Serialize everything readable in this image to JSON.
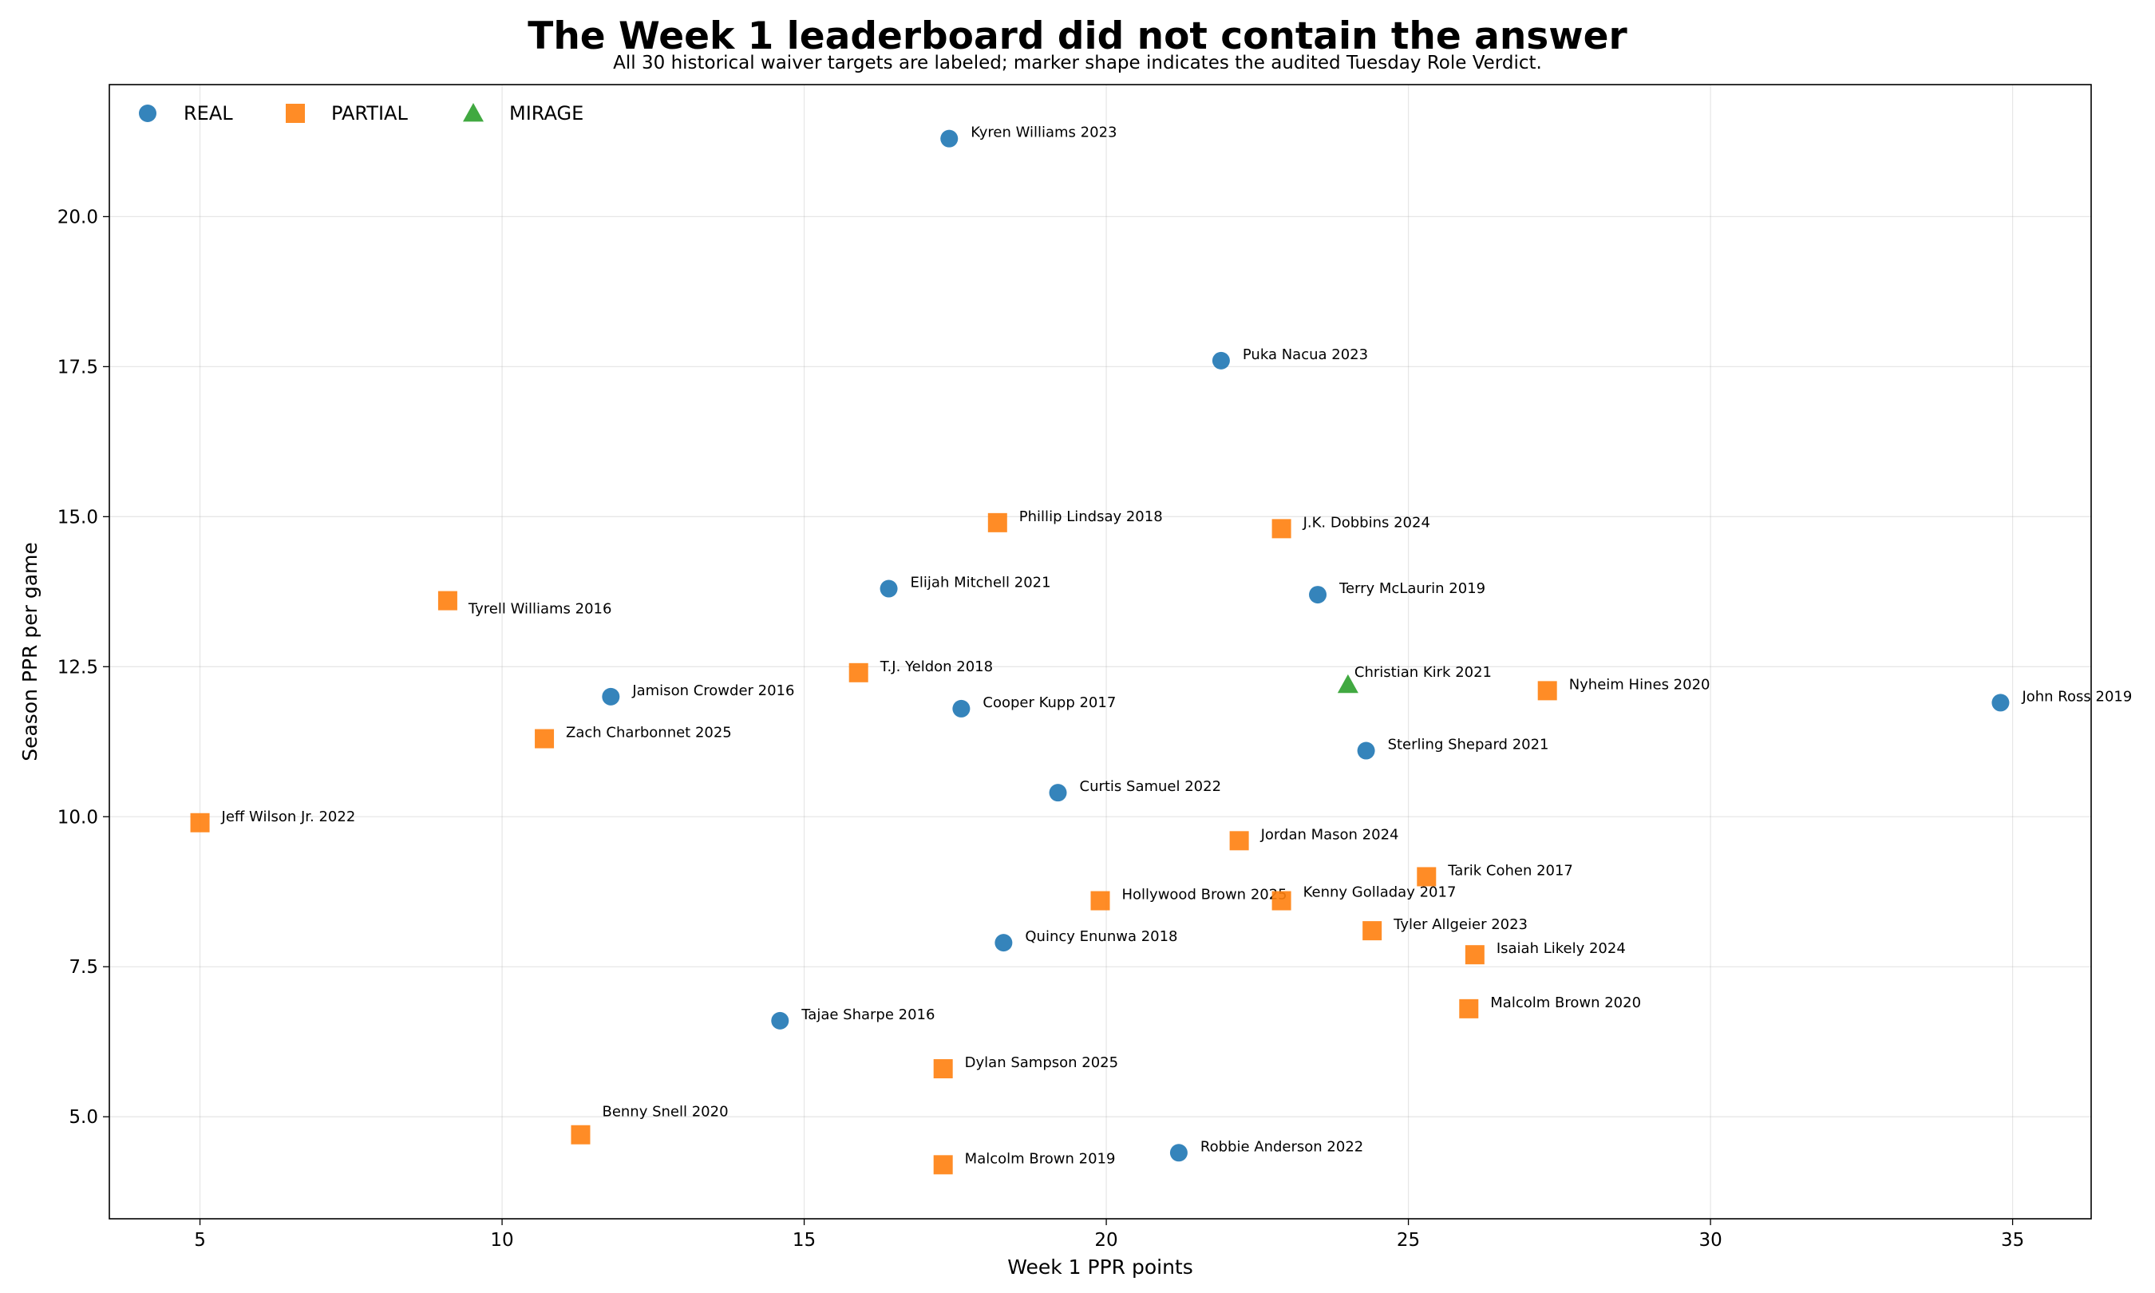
{
  "chart_data": {
    "type": "scatter",
    "title": "The Week 1 leaderboard did not contain the answer",
    "subtitle": "All 30 historical waiver targets are labeled; marker shape indicates the audited Tuesday Role Verdict.",
    "xlabel": "Week 1 PPR points",
    "ylabel": "Season PPR per game",
    "xlim": [
      3.5,
      36.3
    ],
    "ylim": [
      3.3,
      22.2
    ],
    "xticks": [
      5,
      10,
      15,
      20,
      25,
      30,
      35
    ],
    "yticks": [
      5.0,
      7.5,
      10.0,
      12.5,
      15.0,
      17.5,
      20.0
    ],
    "xtick_labels": [
      "5",
      "10",
      "15",
      "20",
      "25",
      "30",
      "35"
    ],
    "ytick_labels": [
      "5.0",
      "7.5",
      "10.0",
      "12.5",
      "15.0",
      "17.5",
      "20.0"
    ],
    "grid": true,
    "legend_position": "top-left",
    "categories": [
      {
        "name": "REAL",
        "marker": "circle",
        "color": "#1f77b4"
      },
      {
        "name": "PARTIAL",
        "marker": "square",
        "color": "#ff7f0e"
      },
      {
        "name": "MIRAGE",
        "marker": "triangle",
        "color": "#2ca02c"
      }
    ],
    "points": [
      {
        "label": "Kyren Williams 2023",
        "x": 17.4,
        "y": 21.3,
        "verdict": "REAL"
      },
      {
        "label": "Puka Nacua 2023",
        "x": 21.9,
        "y": 17.6,
        "verdict": "REAL"
      },
      {
        "label": "Phillip Lindsay 2018",
        "x": 18.2,
        "y": 14.9,
        "verdict": "PARTIAL"
      },
      {
        "label": "J.K. Dobbins 2024",
        "x": 22.9,
        "y": 14.8,
        "verdict": "PARTIAL"
      },
      {
        "label": "Elijah Mitchell 2021",
        "x": 16.4,
        "y": 13.8,
        "verdict": "REAL"
      },
      {
        "label": "Terry McLaurin 2019",
        "x": 23.5,
        "y": 13.7,
        "verdict": "REAL"
      },
      {
        "label": "Tyrell Williams 2016",
        "x": 9.1,
        "y": 13.6,
        "verdict": "PARTIAL"
      },
      {
        "label": "T.J. Yeldon 2018",
        "x": 15.9,
        "y": 12.4,
        "verdict": "PARTIAL"
      },
      {
        "label": "Christian Kirk 2021",
        "x": 24.0,
        "y": 12.2,
        "verdict": "MIRAGE"
      },
      {
        "label": "Nyheim Hines 2020",
        "x": 27.3,
        "y": 12.1,
        "verdict": "PARTIAL"
      },
      {
        "label": "Jamison Crowder 2016",
        "x": 11.8,
        "y": 12.0,
        "verdict": "REAL"
      },
      {
        "label": "John Ross 2019",
        "x": 34.8,
        "y": 11.9,
        "verdict": "REAL"
      },
      {
        "label": "Cooper Kupp 2017",
        "x": 17.6,
        "y": 11.8,
        "verdict": "REAL"
      },
      {
        "label": "Zach Charbonnet 2025",
        "x": 10.7,
        "y": 11.3,
        "verdict": "PARTIAL"
      },
      {
        "label": "Sterling Shepard 2021",
        "x": 24.3,
        "y": 11.1,
        "verdict": "REAL"
      },
      {
        "label": "Curtis Samuel 2022",
        "x": 19.2,
        "y": 10.4,
        "verdict": "REAL"
      },
      {
        "label": "Jeff Wilson Jr. 2022",
        "x": 5.0,
        "y": 9.9,
        "verdict": "PARTIAL"
      },
      {
        "label": "Jordan Mason 2024",
        "x": 22.2,
        "y": 9.6,
        "verdict": "PARTIAL"
      },
      {
        "label": "Tarik Cohen 2017",
        "x": 25.3,
        "y": 9.0,
        "verdict": "PARTIAL"
      },
      {
        "label": "Hollywood Brown 2025",
        "x": 19.9,
        "y": 8.6,
        "verdict": "PARTIAL"
      },
      {
        "label": "Kenny Golladay 2017",
        "x": 22.9,
        "y": 8.6,
        "verdict": "PARTIAL"
      },
      {
        "label": "Tyler Allgeier 2023",
        "x": 24.4,
        "y": 8.1,
        "verdict": "PARTIAL"
      },
      {
        "label": "Quincy Enunwa 2018",
        "x": 18.3,
        "y": 7.9,
        "verdict": "REAL"
      },
      {
        "label": "Isaiah Likely 2024",
        "x": 26.1,
        "y": 7.7,
        "verdict": "PARTIAL"
      },
      {
        "label": "Malcolm Brown 2020",
        "x": 26.0,
        "y": 6.8,
        "verdict": "PARTIAL"
      },
      {
        "label": "Tajae Sharpe 2016",
        "x": 14.6,
        "y": 6.6,
        "verdict": "REAL"
      },
      {
        "label": "Dylan Sampson 2025",
        "x": 17.3,
        "y": 5.8,
        "verdict": "PARTIAL"
      },
      {
        "label": "Benny Snell 2020",
        "x": 11.3,
        "y": 4.7,
        "verdict": "PARTIAL"
      },
      {
        "label": "Robbie Anderson 2022",
        "x": 21.2,
        "y": 4.4,
        "verdict": "REAL"
      },
      {
        "label": "Malcolm Brown 2019",
        "x": 17.3,
        "y": 4.2,
        "verdict": "PARTIAL"
      }
    ]
  }
}
